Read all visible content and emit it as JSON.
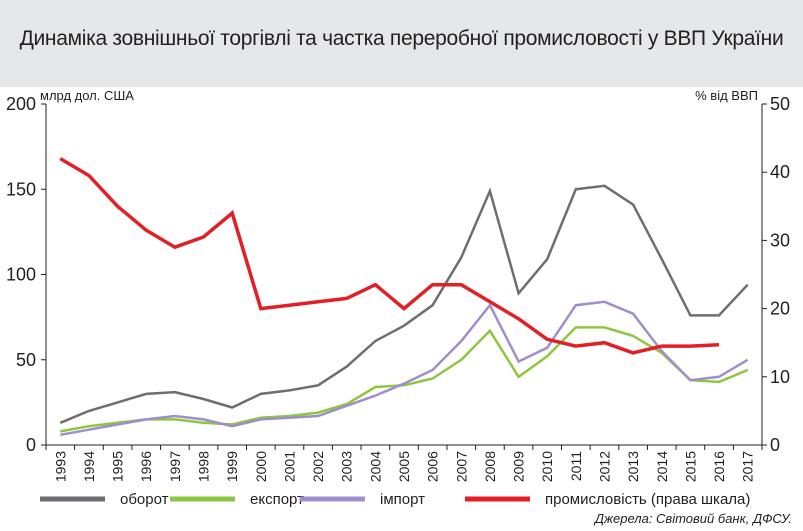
{
  "title": "Динаміка зовнішньої торгівлі та частка переробної промисловості у ВВП України",
  "source": "Джерела: Світовий банк, ДФСУ.",
  "colors": {
    "header_bg": "#e6e7e8",
    "turnover": "#6d6e71",
    "export": "#8dc63f",
    "import": "#a08dcb",
    "industry": "#e31e24"
  },
  "chart_data": {
    "type": "line",
    "ylabel_left": "млрд дол. США",
    "ylabel_right": "% від ВВП",
    "ylim_left": [
      0,
      200
    ],
    "ylim_right": [
      0,
      50
    ],
    "yticks_left": [
      "0",
      "50",
      "100",
      "150",
      "200"
    ],
    "yticks_right": [
      "0",
      "10",
      "20",
      "30",
      "40",
      "50"
    ],
    "grid": false,
    "legend_position": "bottom",
    "x": [
      "1993",
      "1994",
      "1995",
      "1996",
      "1997",
      "1998",
      "1999",
      "2000",
      "2001",
      "2002",
      "2003",
      "2004",
      "2005",
      "2006",
      "2007",
      "2008",
      "2009",
      "2010",
      "2011",
      "2012",
      "2013",
      "2014",
      "2015",
      "2016",
      "2017"
    ],
    "series": [
      {
        "name": "оборот",
        "axis": "left",
        "color": "#6d6e71",
        "values": [
          13,
          20,
          25,
          30,
          31,
          27,
          22,
          30,
          32,
          35,
          46,
          61,
          70,
          82,
          110,
          149,
          89,
          109,
          150,
          152,
          141,
          109,
          76,
          76,
          94
        ]
      },
      {
        "name": "експорт",
        "axis": "left",
        "color": "#8dc63f",
        "values": [
          8,
          11,
          13,
          15,
          15,
          13,
          12,
          16,
          17,
          19,
          24,
          34,
          35,
          39,
          50,
          67,
          40,
          52,
          69,
          69,
          64,
          54,
          38,
          37,
          44
        ]
      },
      {
        "name": "імпорт",
        "axis": "left",
        "color": "#a08dcb",
        "values": [
          6,
          9,
          12,
          15,
          17,
          15,
          11,
          15,
          16,
          17,
          23,
          29,
          36,
          44,
          61,
          82,
          49,
          57,
          82,
          84,
          77,
          55,
          38,
          40,
          50
        ]
      },
      {
        "name": "промисловість (права шкала)",
        "axis": "right",
        "color": "#e31e24",
        "values": [
          42,
          39.5,
          35,
          31.5,
          29,
          30.5,
          34,
          20,
          20.5,
          21,
          21.5,
          23.5,
          20,
          23.5,
          23.5,
          21,
          18.5,
          15.5,
          14.5,
          15,
          13.5,
          14.5,
          14.5,
          14.7,
          null
        ]
      }
    ]
  }
}
